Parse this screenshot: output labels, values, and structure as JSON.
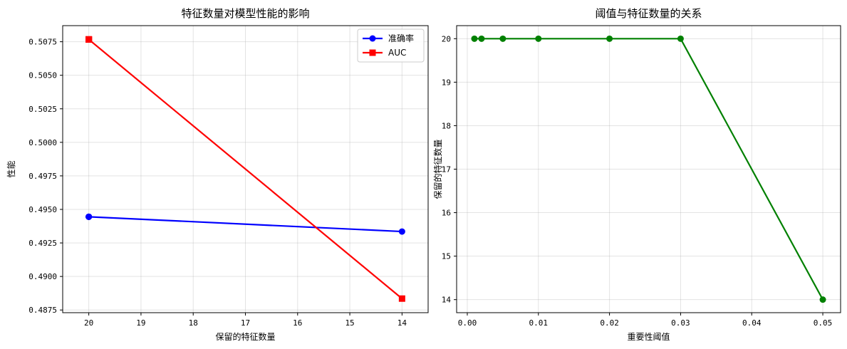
{
  "chart_data": [
    {
      "type": "line",
      "title": "特征数量对模型性能的影响",
      "xlabel": "保留的特征数量",
      "ylabel": "性能",
      "x": [
        20,
        20,
        20,
        20,
        20,
        14
      ],
      "xlim": [
        20.5,
        13.5
      ],
      "ylim": [
        0.4873,
        0.5087
      ],
      "xticks": [
        20,
        19,
        18,
        17,
        16,
        15,
        14
      ],
      "yticks": [
        0.4875,
        0.49,
        0.4925,
        0.495,
        0.4975,
        0.5,
        0.5025,
        0.505,
        0.5075
      ],
      "xtick_labels": [
        "20",
        "19",
        "18",
        "17",
        "16",
        "15",
        "14"
      ],
      "ytick_labels": [
        "0.4875",
        "0.4900",
        "0.4925",
        "0.4950",
        "0.4975",
        "0.5000",
        "0.5025",
        "0.5050",
        "0.5075"
      ],
      "grid": true,
      "legend": "top-right",
      "series": [
        {
          "name": "准确率",
          "color": "#0000ff",
          "marker": "circle",
          "values": [
            0.49445,
            0.49445,
            0.49445,
            0.49445,
            0.49445,
            0.49335
          ]
        },
        {
          "name": "AUC",
          "color": "#ff0000",
          "marker": "square",
          "values": [
            0.50767,
            0.50767,
            0.50767,
            0.50767,
            0.50767,
            0.48835
          ]
        }
      ]
    },
    {
      "type": "line",
      "title": "阈值与特征数量的关系",
      "xlabel": "重要性阈值",
      "ylabel": "保留的特征数量",
      "x": [
        0.001,
        0.002,
        0.005,
        0.01,
        0.02,
        0.03,
        0.05
      ],
      "xlim": [
        -0.0015,
        0.0525
      ],
      "ylim": [
        13.7,
        20.3
      ],
      "xticks": [
        0.0,
        0.01,
        0.02,
        0.03,
        0.04,
        0.05
      ],
      "yticks": [
        14,
        15,
        16,
        17,
        18,
        19,
        20
      ],
      "xtick_labels": [
        "0.00",
        "0.01",
        "0.02",
        "0.03",
        "0.04",
        "0.05"
      ],
      "ytick_labels": [
        "14",
        "15",
        "16",
        "17",
        "18",
        "19",
        "20"
      ],
      "grid": true,
      "series": [
        {
          "color": "#008000",
          "marker": "circle",
          "values": [
            20,
            20,
            20,
            20,
            20,
            20,
            14
          ]
        }
      ]
    }
  ]
}
